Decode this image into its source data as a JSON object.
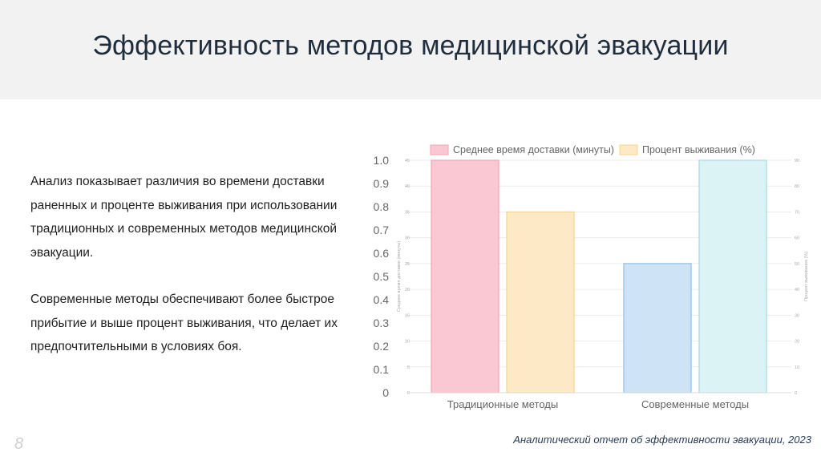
{
  "slide": {
    "title": "Эффективность методов медицинской эвакуации",
    "paragraphs": [
      "Анализ показывает различия во времени доставки раненных и проценте выживания при использовании традиционных и современных методов медицинской эвакуации.",
      "Современные методы обеспечивают более быстрое прибытие и выше процент выживания, что делает их предпочтительными в условиях боя."
    ],
    "page_number": "8",
    "footer": "Аналитический отчет об эффективности эвакуации, 2023"
  },
  "chart_data": {
    "type": "bar",
    "categories": [
      "Традиционные методы",
      "Современные методы"
    ],
    "series": [
      {
        "name": "Среднее время доставки (минуты)",
        "axis": "left",
        "values": [
          45,
          25
        ],
        "color": "#f9c8d2",
        "stroke": "#f3a3b3"
      },
      {
        "name": "Процент выживания (%)",
        "axis": "right",
        "values": [
          70,
          90
        ],
        "color": "#fde9c6",
        "stroke": "#f7d391"
      }
    ],
    "outer_axis_ticks": [
      "0",
      "0.1",
      "0.2",
      "0.3",
      "0.4",
      "0.5",
      "0.6",
      "0.7",
      "0.8",
      "0.9",
      "1.0"
    ],
    "left_axis": {
      "label": "Среднее время доставки (минуты)",
      "ylim": [
        0,
        45
      ],
      "ticks": [
        "0",
        "5",
        "10",
        "15",
        "20",
        "25",
        "30",
        "35",
        "40",
        "45"
      ]
    },
    "right_axis": {
      "label": "Процент выживания (%)",
      "ylim": [
        0,
        90
      ],
      "ticks": [
        "0",
        "10",
        "20",
        "30",
        "40",
        "50",
        "60",
        "70",
        "80",
        "90"
      ]
    },
    "grid": true,
    "legend": "top",
    "bar_colors_by_category": [
      "pink-yellow",
      "blue-teal"
    ],
    "modern_colors": {
      "time": "#cfe3f7",
      "time_stroke": "#8fbfe9",
      "survival": "#dcf3f6",
      "survival_stroke": "#a3dbe3"
    }
  }
}
